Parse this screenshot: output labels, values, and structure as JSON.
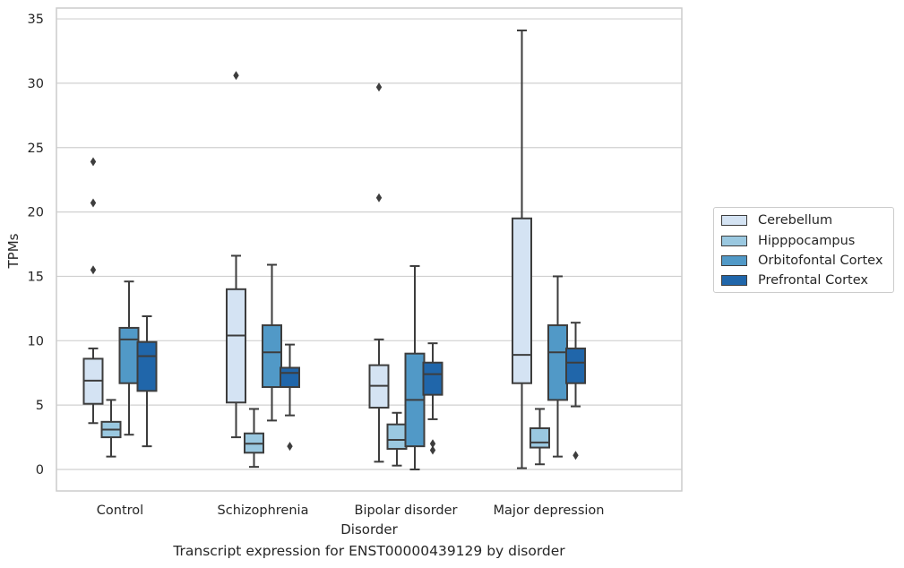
{
  "chart_data": {
    "type": "box",
    "xlabel": "Disorder",
    "ylabel": "TPMs",
    "ylim": [
      -1.6,
      35.9
    ],
    "yticks": [
      0,
      5,
      10,
      15,
      20,
      25,
      30,
      35
    ],
    "grid": "horizontal",
    "legend_position": "right",
    "categories": [
      "Control",
      "Schizophrenia",
      "Bipolar disorder",
      "Major depression"
    ],
    "series": [
      {
        "name": "Cerebellum",
        "color": "#d4e3f3",
        "boxes": [
          {
            "whisker_low": 3.6,
            "q1": 5.1,
            "median": 6.9,
            "q3": 8.6,
            "whisker_high": 9.4,
            "outliers": [
              15.5,
              20.7,
              23.9
            ]
          },
          {
            "whisker_low": 2.5,
            "q1": 5.2,
            "median": 10.4,
            "q3": 14.0,
            "whisker_high": 16.6,
            "outliers": [
              30.6
            ]
          },
          {
            "whisker_low": 0.6,
            "q1": 4.8,
            "median": 6.5,
            "q3": 8.1,
            "whisker_high": 10.1,
            "outliers": [
              21.1,
              29.7
            ]
          },
          {
            "whisker_low": 0.1,
            "q1": 6.7,
            "median": 8.9,
            "q3": 19.5,
            "whisker_high": 34.1,
            "outliers": []
          }
        ]
      },
      {
        "name": "Hipppocampus",
        "color": "#9ac8e0",
        "boxes": [
          {
            "whisker_low": 1.0,
            "q1": 2.5,
            "median": 3.1,
            "q3": 3.7,
            "whisker_high": 5.4,
            "outliers": []
          },
          {
            "whisker_low": 0.2,
            "q1": 1.3,
            "median": 2.0,
            "q3": 2.8,
            "whisker_high": 4.7,
            "outliers": []
          },
          {
            "whisker_low": 0.3,
            "q1": 1.6,
            "median": 2.3,
            "q3": 3.5,
            "whisker_high": 4.4,
            "outliers": []
          },
          {
            "whisker_low": 0.4,
            "q1": 1.7,
            "median": 2.1,
            "q3": 3.2,
            "whisker_high": 4.7,
            "outliers": []
          }
        ]
      },
      {
        "name": "Orbitofontal Cortex",
        "color": "#5199c7",
        "boxes": [
          {
            "whisker_low": 2.7,
            "q1": 6.7,
            "median": 10.1,
            "q3": 11.0,
            "whisker_high": 14.6,
            "outliers": []
          },
          {
            "whisker_low": 3.8,
            "q1": 6.4,
            "median": 9.1,
            "q3": 11.2,
            "whisker_high": 15.9,
            "outliers": []
          },
          {
            "whisker_low": 0.0,
            "q1": 1.8,
            "median": 5.4,
            "q3": 9.0,
            "whisker_high": 15.8,
            "outliers": []
          },
          {
            "whisker_low": 1.0,
            "q1": 5.4,
            "median": 9.1,
            "q3": 11.2,
            "whisker_high": 15.0,
            "outliers": []
          }
        ]
      },
      {
        "name": "Prefrontal Cortex",
        "color": "#2066aa",
        "boxes": [
          {
            "whisker_low": 1.8,
            "q1": 6.1,
            "median": 8.8,
            "q3": 9.9,
            "whisker_high": 11.9,
            "outliers": []
          },
          {
            "whisker_low": 4.2,
            "q1": 6.4,
            "median": 7.5,
            "q3": 7.9,
            "whisker_high": 9.7,
            "outliers": [
              1.8
            ]
          },
          {
            "whisker_low": 3.9,
            "q1": 5.8,
            "median": 7.4,
            "q3": 8.3,
            "whisker_high": 9.8,
            "outliers": [
              1.5,
              2.0
            ]
          },
          {
            "whisker_low": 4.9,
            "q1": 6.7,
            "median": 8.3,
            "q3": 9.4,
            "whisker_high": 11.4,
            "outliers": [
              1.1
            ]
          }
        ]
      }
    ]
  },
  "caption": "Transcript expression for ENST00000439129 by disorder"
}
